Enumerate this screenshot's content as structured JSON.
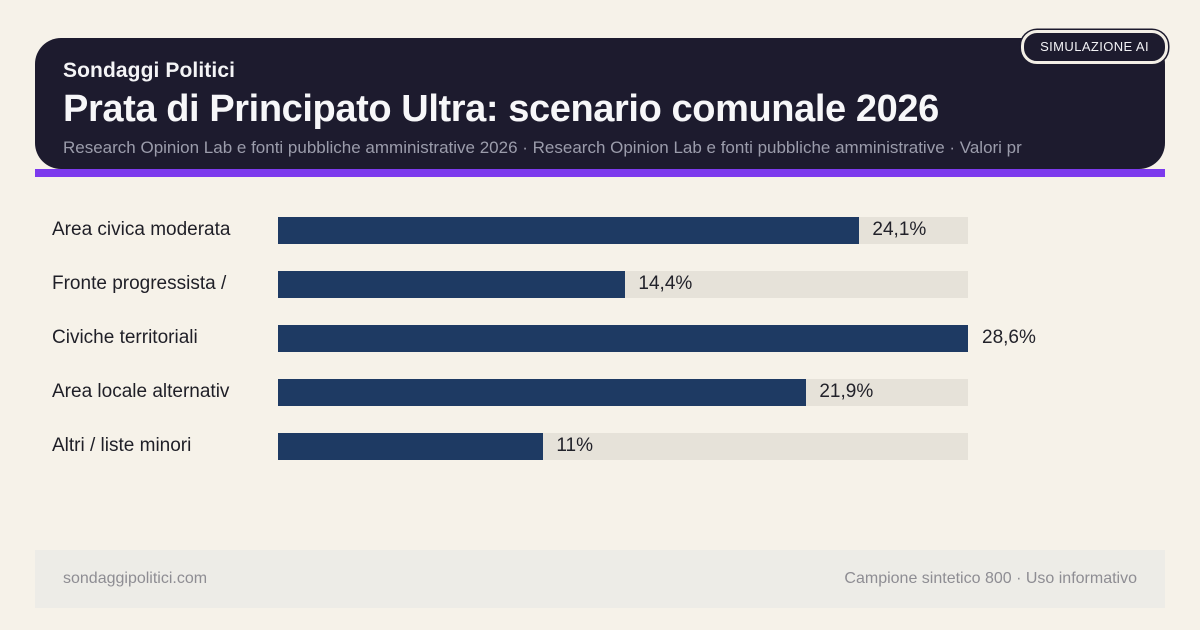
{
  "badge": {
    "label": "SIMULAZIONE AI"
  },
  "header": {
    "kicker": "Sondaggi Politici",
    "title": "Prata di Principato Ultra: scenario comunale 2026",
    "subtitle": "Research Opinion Lab e fonti pubbliche amministrative 2026 · Research Opinion Lab e fonti pubbliche amministrative · Valori pr"
  },
  "chart_data": {
    "type": "bar",
    "orientation": "horizontal",
    "title": "Prata di Principato Ultra: scenario comunale 2026",
    "categories": [
      "Area civica moderata",
      "Fronte progressista /",
      "Civiche territoriali",
      "Area locale alternativ",
      "Altri / liste minori"
    ],
    "values": [
      24.1,
      14.4,
      28.6,
      21.9,
      11
    ],
    "value_labels": [
      "24,1%",
      "14,4%",
      "28,6%",
      "21,9%",
      "11%"
    ],
    "unit": "%",
    "xlim": [
      0,
      28.6
    ],
    "grid": false,
    "legend": false,
    "bar_color": "#1e3a63",
    "track_color": "#e6e2d9"
  },
  "footer": {
    "left": "sondaggipolitici.com",
    "right": "Campione sintetico 800 · Uso informativo"
  },
  "colors": {
    "page_background": "#f6f2e9",
    "header_background": "#1d1b2e",
    "accent": "#7c3aed",
    "bar": "#1e3a63",
    "bar_track": "#e6e2d9",
    "footer_band": "#edece7"
  }
}
